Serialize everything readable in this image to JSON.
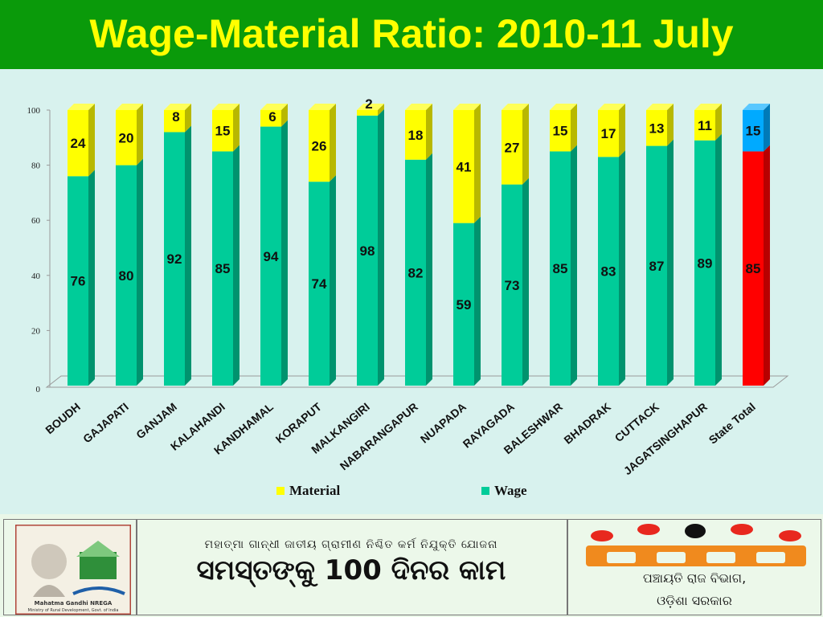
{
  "header": {
    "title": "Wage-Material Ratio: 2010-11 July"
  },
  "chart_data": {
    "type": "bar",
    "stacked": true,
    "categories": [
      "BOUDH",
      "GAJAPATI",
      "GANJAM",
      "KALAHANDI",
      "KANDHAMAL",
      "KORAPUT",
      "MALKANGIRI",
      "NABARANGAPUR",
      "NUAPADA",
      "RAYAGADA",
      "BALESHWAR",
      "BHADRAK",
      "CUTTACK",
      "JAGATSINGHAPUR",
      "State Total"
    ],
    "series": [
      {
        "name": "Wage",
        "values": [
          76,
          80,
          92,
          85,
          94,
          74,
          98,
          82,
          59,
          73,
          85,
          83,
          87,
          89,
          85
        ]
      },
      {
        "name": "Material",
        "values": [
          24,
          20,
          8,
          15,
          6,
          26,
          2,
          18,
          41,
          27,
          15,
          17,
          13,
          11,
          15
        ]
      }
    ],
    "yticks": [
      "0",
      "20",
      "40",
      "60",
      "80",
      "100"
    ],
    "ylim": [
      0,
      100
    ],
    "legend": [
      "Material",
      "Wage"
    ],
    "legend_position": "bottom",
    "colors": {
      "wage": "#00cc99",
      "material": "#ffff00",
      "total_wage": "#ff0000",
      "total_material": "#00aaff"
    }
  },
  "footer": {
    "scheme_line": "ମହାତ୍ମା ଗାନ୍ଧୀ ଜାତୀୟ ଗ୍ରାମୀଣ ନିଶ୍ଚିତ କର୍ମ ନିଯୁକ୍ତି ଯୋଜନା",
    "slogan": "ସମସ୍ତଙ୍କୁ 100 ଦିନର କାମ",
    "dept_line1": "ପଞ୍ଚାୟତି ରାଜ ବିଭାଗ,",
    "dept_line2": "ଓଡ଼ିଶା ସରକାର",
    "logo_caption1": "Mahatma Gandhi NREGA",
    "logo_caption2": "Ministry of Rural Development, Govt. of India"
  }
}
